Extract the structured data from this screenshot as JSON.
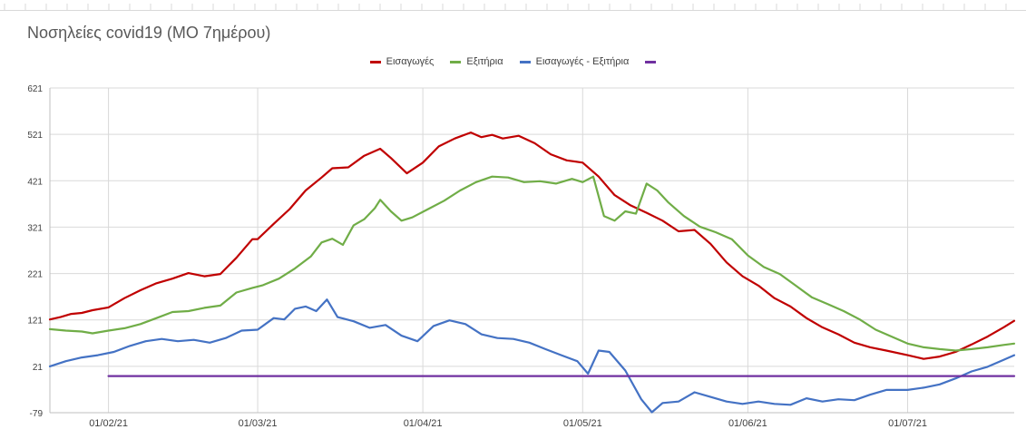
{
  "chart_data": {
    "type": "line",
    "title": "Νοσηλείες covid19 (ΜΟ 7ημέρου)",
    "xlabel": "",
    "ylabel": "",
    "x_start": "2021-01-21",
    "x_end": "2021-07-21",
    "x_ticks": [
      "01/02/21",
      "01/03/21",
      "01/04/21",
      "01/05/21",
      "01/06/21",
      "01/07/21"
    ],
    "x_tick_dates": [
      "2021-02-01",
      "2021-03-01",
      "2021-04-01",
      "2021-05-01",
      "2021-06-01",
      "2021-07-01"
    ],
    "y_ticks": [
      621,
      521,
      421,
      321,
      221,
      121,
      21,
      -79
    ],
    "ylim": [
      -79,
      621
    ],
    "grid": true,
    "legend": "top",
    "series": [
      {
        "name": "Εισαγωγές",
        "color": "#c00000",
        "points": [
          [
            "2021-01-21",
            122
          ],
          [
            "2021-01-23",
            127
          ],
          [
            "2021-01-25",
            134
          ],
          [
            "2021-01-27",
            136
          ],
          [
            "2021-01-29",
            142
          ],
          [
            "2021-02-01",
            148
          ],
          [
            "2021-02-04",
            168
          ],
          [
            "2021-02-07",
            185
          ],
          [
            "2021-02-10",
            200
          ],
          [
            "2021-02-13",
            210
          ],
          [
            "2021-02-16",
            222
          ],
          [
            "2021-02-19",
            215
          ],
          [
            "2021-02-22",
            220
          ],
          [
            "2021-02-25",
            255
          ],
          [
            "2021-02-28",
            295
          ],
          [
            "2021-03-01",
            295
          ],
          [
            "2021-03-04",
            328
          ],
          [
            "2021-03-07",
            360
          ],
          [
            "2021-03-10",
            400
          ],
          [
            "2021-03-13",
            428
          ],
          [
            "2021-03-15",
            448
          ],
          [
            "2021-03-18",
            450
          ],
          [
            "2021-03-21",
            475
          ],
          [
            "2021-03-24",
            490
          ],
          [
            "2021-03-26",
            470
          ],
          [
            "2021-03-29",
            437
          ],
          [
            "2021-04-01",
            460
          ],
          [
            "2021-04-04",
            495
          ],
          [
            "2021-04-07",
            512
          ],
          [
            "2021-04-10",
            525
          ],
          [
            "2021-04-12",
            515
          ],
          [
            "2021-04-14",
            520
          ],
          [
            "2021-04-16",
            512
          ],
          [
            "2021-04-19",
            518
          ],
          [
            "2021-04-22",
            502
          ],
          [
            "2021-04-25",
            478
          ],
          [
            "2021-04-28",
            465
          ],
          [
            "2021-05-01",
            460
          ],
          [
            "2021-05-04",
            430
          ],
          [
            "2021-05-07",
            390
          ],
          [
            "2021-05-10",
            368
          ],
          [
            "2021-05-13",
            352
          ],
          [
            "2021-05-16",
            335
          ],
          [
            "2021-05-19",
            312
          ],
          [
            "2021-05-22",
            315
          ],
          [
            "2021-05-25",
            285
          ],
          [
            "2021-05-28",
            245
          ],
          [
            "2021-05-31",
            215
          ],
          [
            "2021-06-03",
            195
          ],
          [
            "2021-06-06",
            168
          ],
          [
            "2021-06-09",
            150
          ],
          [
            "2021-06-12",
            125
          ],
          [
            "2021-06-15",
            105
          ],
          [
            "2021-06-18",
            90
          ],
          [
            "2021-06-21",
            72
          ],
          [
            "2021-06-24",
            62
          ],
          [
            "2021-06-27",
            55
          ],
          [
            "2021-07-01",
            45
          ],
          [
            "2021-07-04",
            37
          ],
          [
            "2021-07-07",
            42
          ],
          [
            "2021-07-10",
            52
          ],
          [
            "2021-07-13",
            68
          ],
          [
            "2021-07-16",
            85
          ],
          [
            "2021-07-19",
            105
          ],
          [
            "2021-07-21",
            119
          ]
        ]
      },
      {
        "name": "Εξιτήρια",
        "color": "#70ad47",
        "points": [
          [
            "2021-01-21",
            101
          ],
          [
            "2021-01-24",
            98
          ],
          [
            "2021-01-27",
            96
          ],
          [
            "2021-01-29",
            92
          ],
          [
            "2021-02-01",
            98
          ],
          [
            "2021-02-04",
            103
          ],
          [
            "2021-02-07",
            112
          ],
          [
            "2021-02-10",
            125
          ],
          [
            "2021-02-13",
            138
          ],
          [
            "2021-02-16",
            140
          ],
          [
            "2021-02-19",
            147
          ],
          [
            "2021-02-22",
            152
          ],
          [
            "2021-02-25",
            180
          ],
          [
            "2021-02-28",
            190
          ],
          [
            "2021-03-02",
            196
          ],
          [
            "2021-03-05",
            210
          ],
          [
            "2021-03-08",
            232
          ],
          [
            "2021-03-11",
            258
          ],
          [
            "2021-03-13",
            288
          ],
          [
            "2021-03-15",
            296
          ],
          [
            "2021-03-17",
            283
          ],
          [
            "2021-03-19",
            325
          ],
          [
            "2021-03-21",
            338
          ],
          [
            "2021-03-23",
            362
          ],
          [
            "2021-03-24",
            380
          ],
          [
            "2021-03-26",
            355
          ],
          [
            "2021-03-28",
            335
          ],
          [
            "2021-03-30",
            342
          ],
          [
            "2021-04-02",
            360
          ],
          [
            "2021-04-05",
            378
          ],
          [
            "2021-04-08",
            400
          ],
          [
            "2021-04-11",
            418
          ],
          [
            "2021-04-14",
            430
          ],
          [
            "2021-04-17",
            428
          ],
          [
            "2021-04-20",
            418
          ],
          [
            "2021-04-23",
            420
          ],
          [
            "2021-04-26",
            415
          ],
          [
            "2021-04-29",
            425
          ],
          [
            "2021-05-01",
            418
          ],
          [
            "2021-05-03",
            430
          ],
          [
            "2021-05-05",
            345
          ],
          [
            "2021-05-07",
            335
          ],
          [
            "2021-05-09",
            355
          ],
          [
            "2021-05-11",
            350
          ],
          [
            "2021-05-13",
            415
          ],
          [
            "2021-05-15",
            400
          ],
          [
            "2021-05-17",
            375
          ],
          [
            "2021-05-20",
            345
          ],
          [
            "2021-05-23",
            322
          ],
          [
            "2021-05-26",
            310
          ],
          [
            "2021-05-29",
            295
          ],
          [
            "2021-06-01",
            260
          ],
          [
            "2021-06-04",
            235
          ],
          [
            "2021-06-07",
            220
          ],
          [
            "2021-06-10",
            195
          ],
          [
            "2021-06-13",
            170
          ],
          [
            "2021-06-16",
            155
          ],
          [
            "2021-06-19",
            140
          ],
          [
            "2021-06-22",
            122
          ],
          [
            "2021-06-25",
            100
          ],
          [
            "2021-06-28",
            85
          ],
          [
            "2021-07-01",
            70
          ],
          [
            "2021-07-04",
            62
          ],
          [
            "2021-07-07",
            58
          ],
          [
            "2021-07-10",
            55
          ],
          [
            "2021-07-13",
            58
          ],
          [
            "2021-07-16",
            62
          ],
          [
            "2021-07-19",
            67
          ],
          [
            "2021-07-21",
            70
          ]
        ]
      },
      {
        "name": "Εισαγωγές - Εξιτήρια",
        "color": "#4472c4",
        "points": [
          [
            "2021-01-21",
            21
          ],
          [
            "2021-01-24",
            32
          ],
          [
            "2021-01-27",
            40
          ],
          [
            "2021-01-30",
            45
          ],
          [
            "2021-02-02",
            52
          ],
          [
            "2021-02-05",
            65
          ],
          [
            "2021-02-08",
            75
          ],
          [
            "2021-02-11",
            80
          ],
          [
            "2021-02-14",
            75
          ],
          [
            "2021-02-17",
            78
          ],
          [
            "2021-02-20",
            72
          ],
          [
            "2021-02-23",
            82
          ],
          [
            "2021-02-26",
            98
          ],
          [
            "2021-03-01",
            100
          ],
          [
            "2021-03-04",
            125
          ],
          [
            "2021-03-06",
            122
          ],
          [
            "2021-03-08",
            145
          ],
          [
            "2021-03-10",
            150
          ],
          [
            "2021-03-12",
            140
          ],
          [
            "2021-03-14",
            165
          ],
          [
            "2021-03-16",
            127
          ],
          [
            "2021-03-19",
            118
          ],
          [
            "2021-03-22",
            104
          ],
          [
            "2021-03-25",
            110
          ],
          [
            "2021-03-28",
            87
          ],
          [
            "2021-03-31",
            75
          ],
          [
            "2021-04-03",
            108
          ],
          [
            "2021-04-06",
            120
          ],
          [
            "2021-04-09",
            112
          ],
          [
            "2021-04-12",
            90
          ],
          [
            "2021-04-15",
            82
          ],
          [
            "2021-04-18",
            80
          ],
          [
            "2021-04-21",
            72
          ],
          [
            "2021-04-24",
            58
          ],
          [
            "2021-04-27",
            45
          ],
          [
            "2021-04-30",
            32
          ],
          [
            "2021-05-02",
            5
          ],
          [
            "2021-05-04",
            55
          ],
          [
            "2021-05-06",
            52
          ],
          [
            "2021-05-09",
            12
          ],
          [
            "2021-05-12",
            -50
          ],
          [
            "2021-05-14",
            -78
          ],
          [
            "2021-05-16",
            -58
          ],
          [
            "2021-05-19",
            -55
          ],
          [
            "2021-05-22",
            -35
          ],
          [
            "2021-05-25",
            -45
          ],
          [
            "2021-05-28",
            -55
          ],
          [
            "2021-05-31",
            -60
          ],
          [
            "2021-06-03",
            -55
          ],
          [
            "2021-06-06",
            -60
          ],
          [
            "2021-06-09",
            -62
          ],
          [
            "2021-06-12",
            -48
          ],
          [
            "2021-06-15",
            -55
          ],
          [
            "2021-06-18",
            -50
          ],
          [
            "2021-06-21",
            -52
          ],
          [
            "2021-06-24",
            -40
          ],
          [
            "2021-06-27",
            -30
          ],
          [
            "2021-07-01",
            -30
          ],
          [
            "2021-07-04",
            -25
          ],
          [
            "2021-07-07",
            -18
          ],
          [
            "2021-07-10",
            -5
          ],
          [
            "2021-07-13",
            10
          ],
          [
            "2021-07-16",
            20
          ],
          [
            "2021-07-19",
            35
          ],
          [
            "2021-07-21",
            45
          ]
        ]
      },
      {
        "name": "",
        "color": "#7030a0",
        "points": [
          [
            "2021-02-01",
            0
          ],
          [
            "2021-07-21",
            0
          ]
        ]
      }
    ]
  }
}
